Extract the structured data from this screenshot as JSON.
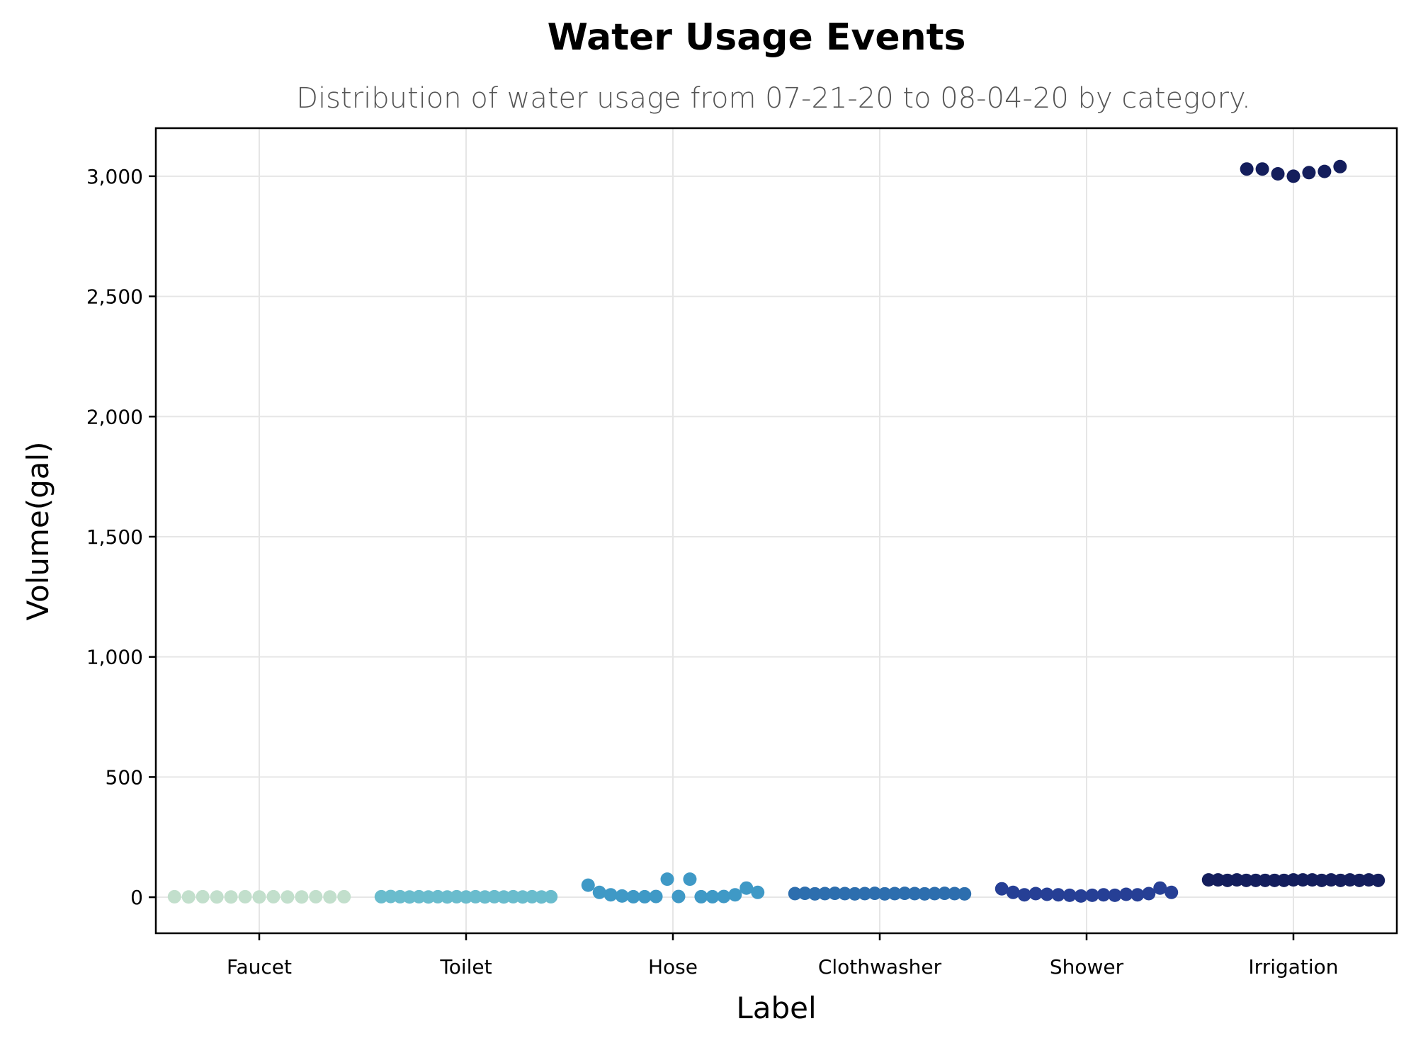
{
  "chart_data": {
    "type": "scatter",
    "title": "Water Usage Events",
    "subtitle": "Distribution of water usage from 07-21-20 to 08-04-20 by category.",
    "xlabel": "Label",
    "ylabel": "Volume(gal)",
    "ylim": [
      -150,
      3200
    ],
    "yticks": [
      0,
      500,
      1000,
      1500,
      2000,
      2500,
      3000
    ],
    "ytick_labels": [
      "0",
      "500",
      "1,000",
      "1,500",
      "2,000",
      "2,500",
      "3,000"
    ],
    "grid": true,
    "categories": [
      "Faucet",
      "Toilet",
      "Hose",
      "Clothwasher",
      "Shower",
      "Irrigation"
    ],
    "series": [
      {
        "category": "Faucet",
        "color": "#c2dfcc",
        "values": [
          2,
          1,
          2,
          1,
          1,
          2,
          1,
          2,
          1,
          1,
          2,
          1,
          2
        ]
      },
      {
        "category": "Toilet",
        "color": "#6abccd",
        "values": [
          2,
          3,
          2,
          1,
          2,
          1,
          2,
          1,
          2,
          1,
          2,
          1,
          2,
          1,
          2,
          1,
          2,
          1,
          2
        ]
      },
      {
        "category": "Hose",
        "color": "#3f99c6",
        "values": [
          50,
          20,
          10,
          5,
          2,
          2,
          3,
          75,
          3,
          75,
          2,
          2,
          3,
          10,
          38,
          20
        ]
      },
      {
        "category": "Clothwasher",
        "color": "#2d6eae",
        "values": [
          15,
          16,
          14,
          15,
          16,
          15,
          14,
          15,
          16,
          14,
          15,
          16,
          15,
          14,
          15,
          16,
          15,
          14
        ]
      },
      {
        "category": "Shower",
        "color": "#263f95",
        "values": [
          35,
          20,
          10,
          15,
          12,
          10,
          8,
          5,
          8,
          10,
          8,
          12,
          10,
          15,
          38,
          20
        ]
      },
      {
        "category": "Irrigation",
        "color": "#141e5c",
        "values": [
          3030,
          3030,
          3010,
          3000,
          3015,
          3020,
          3040,
          72,
          72,
          70,
          72,
          70,
          70,
          70,
          70,
          70,
          72,
          72,
          72,
          70,
          72,
          70,
          72,
          70,
          72,
          70
        ]
      }
    ]
  }
}
